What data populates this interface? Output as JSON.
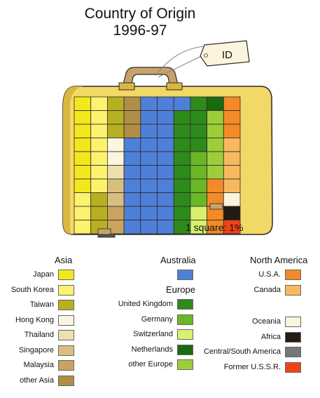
{
  "title_line1": "Country of Origin",
  "title_line2": "1996-97",
  "tag_text": "ID",
  "scale_note": "1 square: 1%",
  "chart_data": {
    "type": "waffle",
    "title": "Country of Origin 1996-97",
    "unit": "1 square: 1%",
    "total_squares": 100,
    "groups": [
      {
        "name": "Asia",
        "items": [
          {
            "label": "Japan",
            "value": 7,
            "color": "#F3E81C"
          },
          {
            "label": "South Korea",
            "value": 10,
            "color": "#FCF26E"
          },
          {
            "label": "Taiwan",
            "value": 6,
            "color": "#B8B023"
          },
          {
            "label": "Hong Kong",
            "value": 2,
            "color": "#FBF6DF"
          },
          {
            "label": "Thailand",
            "value": 1,
            "color": "#EEDFB0"
          },
          {
            "label": "Singapore",
            "value": 2,
            "color": "#D8BF80"
          },
          {
            "label": "Malaysia",
            "value": 2,
            "color": "#C9A360"
          },
          {
            "label": "other Asia",
            "value": 3,
            "color": "#B08E47"
          }
        ]
      },
      {
        "name": "Australia",
        "items": [
          {
            "label": "",
            "value": 28,
            "color": "#4F80D8"
          }
        ]
      },
      {
        "name": "Europe",
        "items": [
          {
            "label": "United Kingdom",
            "value": 13,
            "color": "#2E8A1B"
          },
          {
            "label": "Germany",
            "value": 4,
            "color": "#6AB826"
          },
          {
            "label": "Switzerland",
            "value": 2,
            "color": "#D8F06E"
          },
          {
            "label": "Netherlands",
            "value": 1,
            "color": "#1A6B10"
          },
          {
            "label": "other Europe",
            "value": 5,
            "color": "#9DCD3A"
          }
        ]
      },
      {
        "name": "North America",
        "items": [
          {
            "label": "U.S.A.",
            "value": 7,
            "color": "#F48A27"
          },
          {
            "label": "Canada",
            "value": 4,
            "color": "#F8B95E"
          }
        ]
      },
      {
        "name": "",
        "items": [
          {
            "label": "Oceania",
            "value": 1,
            "color": "#FCF4DC"
          },
          {
            "label": "Africa",
            "value": 1,
            "color": "#231B15"
          },
          {
            "label": "Central/South America",
            "value": 0,
            "color": "#777777"
          },
          {
            "label": "Former U.S.S.R.",
            "value": 1,
            "color": "#EE4415"
          }
        ]
      }
    ]
  },
  "colors": {
    "suitcase_body": "#F2D867",
    "suitcase_shadow": "#D9B83E",
    "handle": "#C8A26A",
    "outline": "#2A2A2A"
  }
}
